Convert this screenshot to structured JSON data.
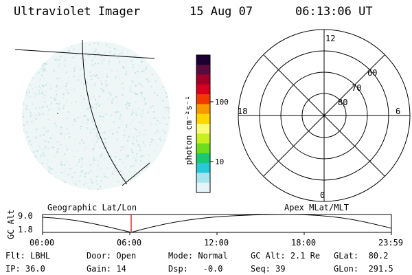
{
  "header": {
    "instrument": "Ultraviolet Imager",
    "date": "15 Aug 07",
    "time": "06:13:06 UT"
  },
  "colorbar": {
    "label": "photon cm⁻²s⁻¹",
    "tick_100": "100",
    "tick_10": "10",
    "colors": [
      "#1a0033",
      "#5a0a3c",
      "#a0002a",
      "#d9001f",
      "#f23a00",
      "#f79800",
      "#ffd500",
      "#fbfb7a",
      "#c8f020",
      "#6fdc1c",
      "#19c870",
      "#28c8d8",
      "#a8e4ee",
      "#e4f4f8"
    ]
  },
  "geo_panel": {
    "label": "Geographic Lat/Lon"
  },
  "polar": {
    "label": "Apex MLat/MLT",
    "mlt_top": "12",
    "mlt_bottom": "0",
    "mlt_left": "18",
    "mlt_right": "6",
    "lat_60": "60",
    "lat_70": "70",
    "lat_80": "80"
  },
  "altitude_plot": {
    "ylabel": "GC Alt",
    "y_max": "9.0",
    "y_min": "1.8",
    "x_ticks": [
      "00:00",
      "06:00",
      "12:00",
      "18:00",
      "23:59"
    ],
    "marker_color": "#cc0000"
  },
  "status": {
    "flt_label": "Flt:",
    "flt_value": "LBHL",
    "ip_label": "IP:",
    "ip_value": "36.0",
    "door_label": "Door:",
    "door_value": "Open",
    "gain_label": "Gain:",
    "gain_value": "14",
    "mode_label": "Mode:",
    "mode_value": "Normal",
    "dsp_label": "Dsp:",
    "dsp_value": "-0.0",
    "gcalt_label": "GC Alt:",
    "gcalt_value": "2.1 Re",
    "seq_label": "Seq:",
    "seq_value": "39",
    "glat_label": "GLat:",
    "glat_value": "80.2",
    "glon_label": "GLon:",
    "glon_value": "291.5"
  }
}
